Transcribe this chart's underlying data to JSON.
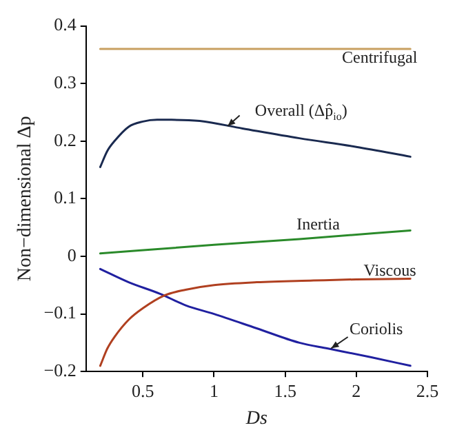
{
  "chart_data": {
    "type": "line",
    "xlabel": "Ds",
    "ylabel": "Non−dimensional Δp",
    "xlim": [
      0.1,
      2.5
    ],
    "ylim": [
      -0.2,
      0.4
    ],
    "xticks": [
      0.5,
      1,
      1.5,
      2,
      2.5
    ],
    "yticks": [
      {
        "value": -0.2,
        "label": "−0.2"
      },
      {
        "value": -0.1,
        "label": "−0.1"
      },
      0,
      0.1,
      0.2,
      0.3,
      0.4
    ],
    "grid": false,
    "legend": false,
    "marker": "none",
    "line_style": "solid",
    "series": [
      {
        "color": "#c8a060",
        "x": [
          0.2,
          2.38
        ],
        "values": [
          0.36,
          0.36
        ]
      },
      {
        "color": "#1a2a50",
        "x": [
          0.2,
          0.25,
          0.3,
          0.4,
          0.5,
          0.6,
          0.7,
          0.9,
          1.2,
          1.6,
          2.0,
          2.38
        ],
        "values": [
          0.155,
          0.183,
          0.2,
          0.225,
          0.234,
          0.237,
          0.237,
          0.235,
          0.222,
          0.205,
          0.19,
          0.173
        ]
      },
      {
        "color": "#2a8a2a",
        "x": [
          0.2,
          1.0,
          1.6,
          2.38
        ],
        "values": [
          0.005,
          0.02,
          0.03,
          0.045
        ]
      },
      {
        "color": "#b04020",
        "x": [
          0.2,
          0.25,
          0.3,
          0.4,
          0.5,
          0.65,
          0.8,
          1.0,
          1.3,
          1.7,
          2.0,
          2.38
        ],
        "values": [
          -0.19,
          -0.16,
          -0.14,
          -0.11,
          -0.09,
          -0.068,
          -0.058,
          -0.05,
          -0.045,
          -0.042,
          -0.04,
          -0.039
        ]
      },
      {
        "color": "#2020a0",
        "x": [
          0.2,
          0.4,
          0.62,
          0.8,
          1.0,
          1.3,
          1.6,
          1.8,
          2.1,
          2.38
        ],
        "values": [
          -0.022,
          -0.045,
          -0.065,
          -0.085,
          -0.1,
          -0.125,
          -0.15,
          -0.16,
          -0.175,
          -0.19
        ]
      }
    ],
    "annotations": [
      "Centrifugal",
      "Overall (Δp̂$_{io}$)",
      "Inertia",
      "Viscous",
      "Coriolis"
    ]
  }
}
